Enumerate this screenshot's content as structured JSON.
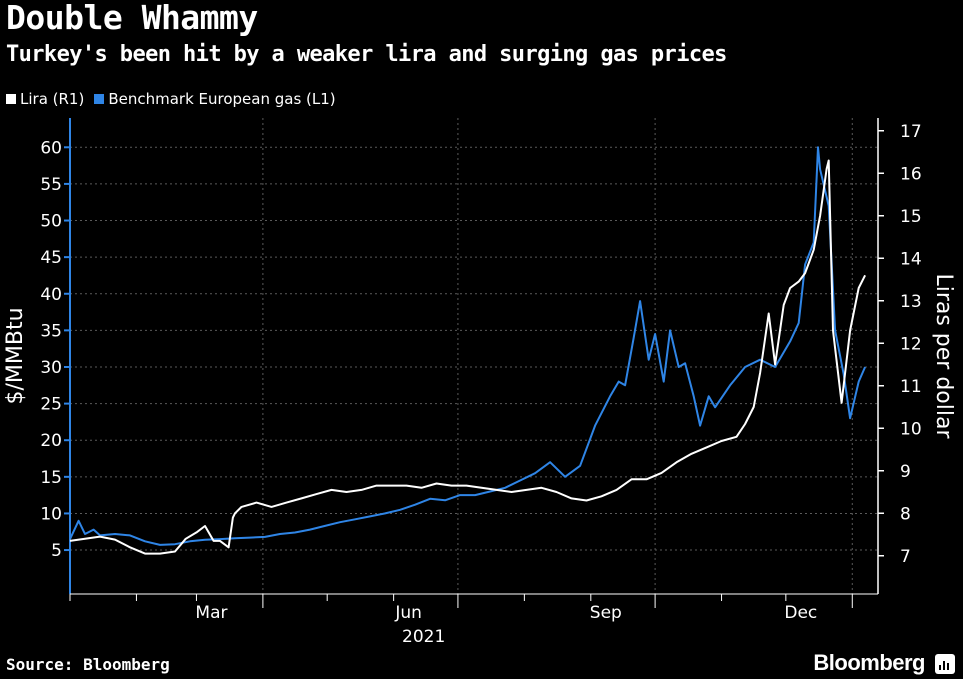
{
  "title": "Double Whammy",
  "subtitle": "Turkey's been hit by a weaker lira and surging gas prices",
  "source": "Source: Bloomberg",
  "brand": "Bloomberg",
  "chart_data": {
    "type": "line",
    "xlabel": "2021",
    "x_ticks": [
      "Mar",
      "Jun",
      "Sep",
      "Dec"
    ],
    "y_left": {
      "label": "$/MMBtu",
      "ticks": [
        5,
        10,
        15,
        20,
        25,
        30,
        35,
        40,
        45,
        50,
        55,
        60
      ],
      "ylim": [
        -1,
        64
      ]
    },
    "y_right": {
      "label": "Liras per dollar",
      "ticks": [
        7,
        8,
        9,
        10,
        11,
        12,
        13,
        14,
        15,
        16,
        17
      ],
      "ylim": [
        6.1,
        17.3
      ]
    },
    "grid": true,
    "legend": "top-left",
    "series": [
      {
        "name": "Lira (R1)",
        "axis": "right",
        "color": "#ffffff",
        "x": [
          "2021-01-01",
          "2021-01-08",
          "2021-01-15",
          "2021-01-22",
          "2021-01-29",
          "2021-02-05",
          "2021-02-12",
          "2021-02-19",
          "2021-02-24",
          "2021-03-01",
          "2021-03-05",
          "2021-03-09",
          "2021-03-12",
          "2021-03-16",
          "2021-03-18",
          "2021-03-19",
          "2021-03-22",
          "2021-03-29",
          "2021-04-05",
          "2021-04-12",
          "2021-04-19",
          "2021-04-26",
          "2021-05-03",
          "2021-05-10",
          "2021-05-17",
          "2021-05-24",
          "2021-05-31",
          "2021-06-07",
          "2021-06-14",
          "2021-06-21",
          "2021-06-28",
          "2021-07-05",
          "2021-07-12",
          "2021-07-19",
          "2021-07-26",
          "2021-08-02",
          "2021-08-09",
          "2021-08-16",
          "2021-08-23",
          "2021-08-30",
          "2021-09-06",
          "2021-09-13",
          "2021-09-20",
          "2021-09-27",
          "2021-10-04",
          "2021-10-11",
          "2021-10-18",
          "2021-10-25",
          "2021-11-01",
          "2021-11-08",
          "2021-11-12",
          "2021-11-16",
          "2021-11-19",
          "2021-11-23",
          "2021-11-26",
          "2021-11-30",
          "2021-12-03",
          "2021-12-07",
          "2021-12-10",
          "2021-12-14",
          "2021-12-17",
          "2021-12-20",
          "2021-12-21",
          "2021-12-23",
          "2021-12-27",
          "2021-12-31",
          "2022-01-04",
          "2022-01-07"
        ],
        "values": [
          7.35,
          7.4,
          7.45,
          7.38,
          7.2,
          7.05,
          7.05,
          7.1,
          7.4,
          7.55,
          7.7,
          7.35,
          7.35,
          7.2,
          7.9,
          8.0,
          8.15,
          8.25,
          8.15,
          8.25,
          8.35,
          8.45,
          8.55,
          8.5,
          8.55,
          8.65,
          8.65,
          8.65,
          8.6,
          8.7,
          8.65,
          8.65,
          8.6,
          8.55,
          8.5,
          8.55,
          8.6,
          8.5,
          8.35,
          8.3,
          8.4,
          8.55,
          8.8,
          8.8,
          8.95,
          9.2,
          9.4,
          9.55,
          9.7,
          9.8,
          10.1,
          10.5,
          11.3,
          12.7,
          11.5,
          12.9,
          13.3,
          13.45,
          13.65,
          14.2,
          15.0,
          16.1,
          16.3,
          12.3,
          10.6,
          12.3,
          13.3,
          13.6
        ]
      },
      {
        "name": "Benchmark European gas (L1)",
        "axis": "left",
        "color": "#2f85e6",
        "x": [
          "2021-01-01",
          "2021-01-05",
          "2021-01-08",
          "2021-01-12",
          "2021-01-15",
          "2021-01-22",
          "2021-01-29",
          "2021-02-05",
          "2021-02-12",
          "2021-02-19",
          "2021-02-26",
          "2021-03-05",
          "2021-03-12",
          "2021-03-19",
          "2021-03-26",
          "2021-04-02",
          "2021-04-09",
          "2021-04-16",
          "2021-04-23",
          "2021-04-30",
          "2021-05-07",
          "2021-05-14",
          "2021-05-21",
          "2021-05-28",
          "2021-06-04",
          "2021-06-11",
          "2021-06-18",
          "2021-06-25",
          "2021-07-02",
          "2021-07-09",
          "2021-07-16",
          "2021-07-23",
          "2021-07-30",
          "2021-08-06",
          "2021-08-13",
          "2021-08-20",
          "2021-08-27",
          "2021-09-03",
          "2021-09-10",
          "2021-09-14",
          "2021-09-17",
          "2021-09-21",
          "2021-09-24",
          "2021-09-28",
          "2021-10-01",
          "2021-10-05",
          "2021-10-08",
          "2021-10-12",
          "2021-10-15",
          "2021-10-19",
          "2021-10-22",
          "2021-10-26",
          "2021-10-29",
          "2021-11-05",
          "2021-11-12",
          "2021-11-19",
          "2021-11-26",
          "2021-12-03",
          "2021-12-07",
          "2021-12-10",
          "2021-12-14",
          "2021-12-16",
          "2021-12-17",
          "2021-12-21",
          "2021-12-24",
          "2021-12-28",
          "2021-12-31",
          "2022-01-04",
          "2022-01-07"
        ],
        "values": [
          6.5,
          9,
          7.2,
          7.8,
          7.0,
          7.2,
          7.0,
          6.2,
          5.7,
          5.8,
          6.2,
          6.4,
          6.5,
          6.6,
          6.7,
          6.8,
          7.2,
          7.4,
          7.8,
          8.3,
          8.8,
          9.2,
          9.6,
          10.0,
          10.5,
          11.2,
          12.0,
          11.8,
          12.5,
          12.5,
          13.0,
          13.5,
          14.5,
          15.5,
          17.0,
          15.0,
          16.5,
          22.0,
          26.0,
          28.0,
          27.5,
          34.0,
          39.0,
          31.0,
          34.5,
          28.0,
          35.0,
          30.0,
          30.5,
          26.0,
          22.0,
          26.0,
          24.5,
          27.5,
          30.0,
          31.0,
          30.0,
          33.5,
          36.0,
          44.0,
          47.0,
          60.0,
          57.0,
          52.0,
          35.0,
          29.0,
          23.0,
          28.0,
          30.0
        ]
      }
    ]
  }
}
